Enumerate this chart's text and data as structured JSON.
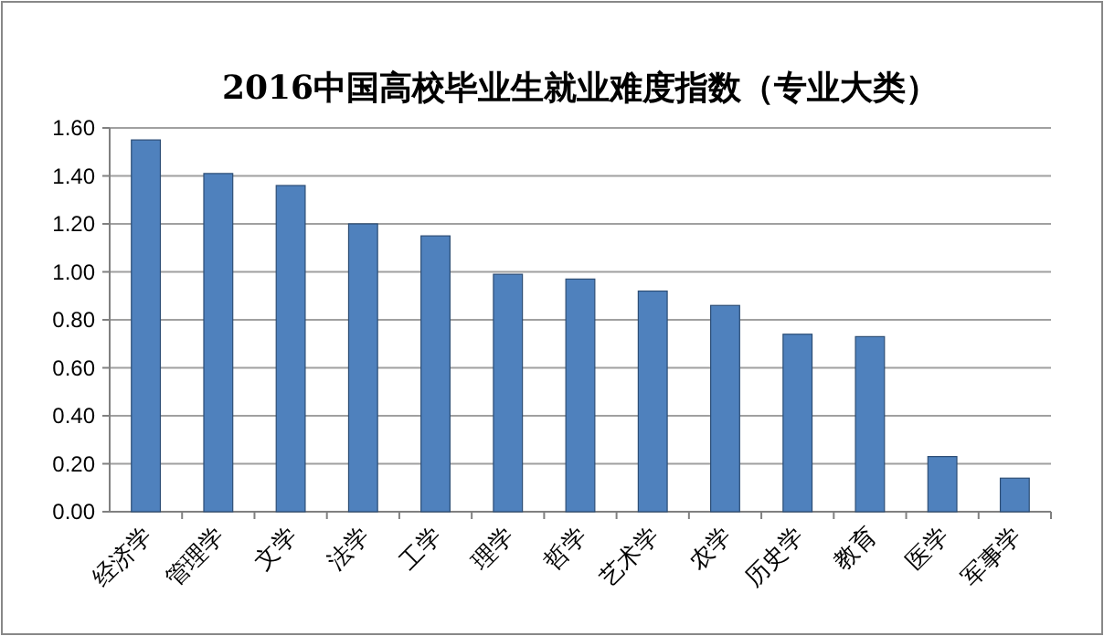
{
  "chart_data": {
    "type": "bar",
    "title": "2016中国高校毕业生就业难度指数（专业大类）",
    "categories": [
      "经济学",
      "管理学",
      "文学",
      "法学",
      "工学",
      "理学",
      "哲学",
      "艺术学",
      "农学",
      "历史学",
      "教育",
      "医学",
      "军事学"
    ],
    "values": [
      1.55,
      1.41,
      1.36,
      1.2,
      1.15,
      0.99,
      0.97,
      0.92,
      0.86,
      0.74,
      0.73,
      0.23,
      0.14
    ],
    "color": "#4f81bd",
    "ylim": [
      0,
      1.6
    ],
    "yticks": [
      {
        "value": 0,
        "label": "0.00"
      },
      {
        "value": 0.2,
        "label": "0.20"
      },
      {
        "value": 0.4,
        "label": "0.40"
      },
      {
        "value": 0.6,
        "label": "0.60"
      },
      {
        "value": 0.8,
        "label": "0.80"
      },
      {
        "value": 1.0,
        "label": "1.00"
      },
      {
        "value": 1.2,
        "label": "1.20"
      },
      {
        "value": 1.4,
        "label": "1.40"
      },
      {
        "value": 1.6,
        "label": "1.60"
      }
    ],
    "grid": "y"
  }
}
